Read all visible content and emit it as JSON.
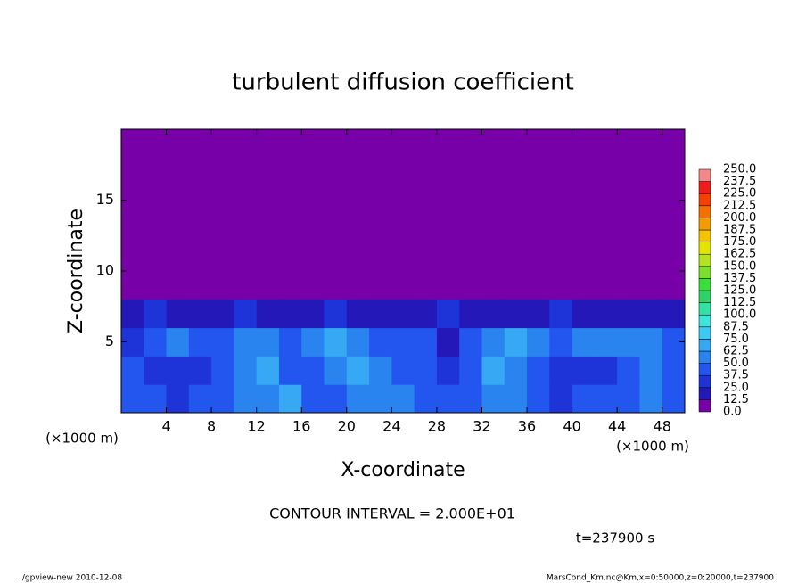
{
  "chart_data": {
    "type": "contour",
    "title": "turbulent diffusion coefficient",
    "x_label": "X-coordinate",
    "y_label": "Z-coordinate",
    "x_unit": "(×1000 m)",
    "y_unit": "(×1000 m)",
    "xlim": [
      0,
      50
    ],
    "ylim": [
      0,
      20
    ],
    "xticks": [
      4,
      8,
      12,
      16,
      20,
      24,
      28,
      32,
      36,
      40,
      44,
      48
    ],
    "yticks": [
      5,
      10,
      15
    ],
    "x_edges": [
      0,
      2,
      4,
      6,
      8,
      10,
      12,
      14,
      16,
      18,
      20,
      22,
      24,
      26,
      28,
      30,
      32,
      34,
      36,
      38,
      40,
      42,
      44,
      46,
      48,
      50
    ],
    "z_edges": [
      0,
      2,
      4,
      6,
      8
    ],
    "values": [
      [
        45,
        40,
        35,
        40,
        45,
        50,
        55,
        70,
        45,
        40,
        55,
        60,
        50,
        45,
        45,
        45,
        50,
        60,
        40,
        35,
        40,
        45,
        45,
        50,
        40
      ],
      [
        40,
        30,
        30,
        35,
        45,
        60,
        65,
        45,
        40,
        60,
        65,
        55,
        45,
        40,
        30,
        45,
        65,
        55,
        45,
        35,
        30,
        35,
        40,
        55,
        45
      ],
      [
        35,
        40,
        50,
        45,
        40,
        55,
        50,
        45,
        50,
        65,
        55,
        45,
        40,
        45,
        20,
        40,
        60,
        65,
        55,
        45,
        50,
        50,
        55,
        50,
        40
      ],
      [
        15,
        25,
        20,
        15,
        20,
        25,
        20,
        15,
        20,
        25,
        15,
        20,
        20,
        15,
        30,
        20,
        15,
        15,
        20,
        25,
        20,
        15,
        15,
        20,
        20
      ]
    ],
    "levels": [
      {
        "value": 0,
        "label": "0.0"
      },
      {
        "value": 12.5,
        "label": "12.5"
      },
      {
        "value": 25,
        "label": "25.0"
      },
      {
        "value": 37.5,
        "label": "37.5"
      },
      {
        "value": 50,
        "label": "50.0"
      },
      {
        "value": 62.5,
        "label": "62.5"
      },
      {
        "value": 75,
        "label": "75.0"
      },
      {
        "value": 87.5,
        "label": "87.5"
      },
      {
        "value": 100,
        "label": "100.0"
      },
      {
        "value": 112.5,
        "label": "112.5"
      },
      {
        "value": 125,
        "label": "125.0"
      },
      {
        "value": 137.5,
        "label": "137.5"
      },
      {
        "value": 150,
        "label": "150.0"
      },
      {
        "value": 162.5,
        "label": "162.5"
      },
      {
        "value": 175,
        "label": "175.0"
      },
      {
        "value": 187.5,
        "label": "187.5"
      },
      {
        "value": 200,
        "label": "200.0"
      },
      {
        "value": 212.5,
        "label": "212.5"
      },
      {
        "value": 225,
        "label": "225.0"
      },
      {
        "value": 237.5,
        "label": "237.5"
      },
      {
        "value": 250,
        "label": "250.0"
      }
    ],
    "colors": [
      "#7800a8",
      "#2418b8",
      "#1e34d8",
      "#2256ee",
      "#2a84f0",
      "#36a8f4",
      "#3ccaf2",
      "#40e4da",
      "#34e0a4",
      "#2cd466",
      "#38e03a",
      "#7ce02c",
      "#b4e420",
      "#e4e400",
      "#f4c400",
      "#f49c00",
      "#f47000",
      "#f44000",
      "#f01c1c",
      "#f48888"
    ],
    "contour_interval": "CONTOUR INTERVAL = 2.000E+01",
    "time_label": "t=237900 s",
    "footer_left": "./gpview-new   2010-12-08",
    "footer_right": "MarsCond_Km.nc@Km,x=0:50000,z=0:20000,t=237900"
  }
}
